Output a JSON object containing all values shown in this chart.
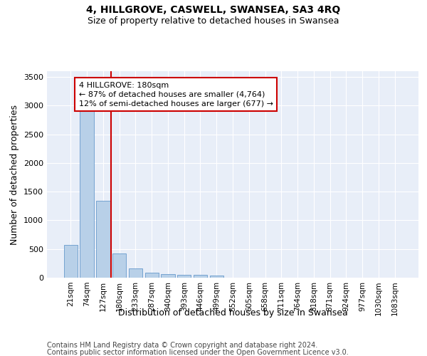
{
  "title": "4, HILLGROVE, CASWELL, SWANSEA, SA3 4RQ",
  "subtitle": "Size of property relative to detached houses in Swansea",
  "xlabel": "Distribution of detached houses by size in Swansea",
  "ylabel": "Number of detached properties",
  "categories": [
    "21sqm",
    "74sqm",
    "127sqm",
    "180sqm",
    "233sqm",
    "287sqm",
    "340sqm",
    "393sqm",
    "446sqm",
    "499sqm",
    "552sqm",
    "605sqm",
    "658sqm",
    "711sqm",
    "764sqm",
    "818sqm",
    "871sqm",
    "924sqm",
    "977sqm",
    "1030sqm",
    "1083sqm"
  ],
  "values": [
    570,
    2900,
    1340,
    420,
    160,
    90,
    65,
    55,
    45,
    35,
    0,
    0,
    0,
    0,
    0,
    0,
    0,
    0,
    0,
    0,
    0
  ],
  "bar_color": "#b8d0e8",
  "bar_edge_color": "#6699cc",
  "highlight_line_index": 3,
  "highlight_color": "#cc0000",
  "annotation_line1": "4 HILLGROVE: 180sqm",
  "annotation_line2": "← 87% of detached houses are smaller (4,764)",
  "annotation_line3": "12% of semi-detached houses are larger (677) →",
  "ylim": [
    0,
    3600
  ],
  "yticks": [
    0,
    500,
    1000,
    1500,
    2000,
    2500,
    3000,
    3500
  ],
  "background_color": "#e8eef8",
  "grid_color": "#d0d8e8",
  "footer_line1": "Contains HM Land Registry data © Crown copyright and database right 2024.",
  "footer_line2": "Contains public sector information licensed under the Open Government Licence v3.0.",
  "title_fontsize": 10,
  "subtitle_fontsize": 9,
  "axis_fontsize": 9,
  "tick_fontsize": 7.5,
  "annotation_fontsize": 8,
  "footer_fontsize": 7
}
